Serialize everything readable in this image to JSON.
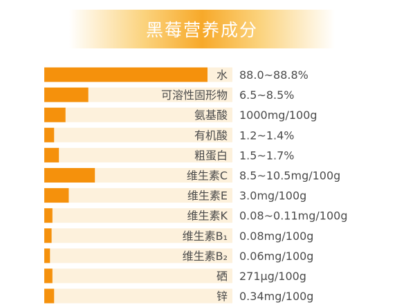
{
  "title": "黑莓营养成分",
  "colors": {
    "bar": "#f5910c",
    "track": "#fdf1dc",
    "banner_center": "#f7a92a",
    "banner_edge": "#fbd37e",
    "text": "#4a4a4a"
  },
  "chart_data": {
    "type": "bar",
    "orientation": "horizontal",
    "title": "黑莓营养成分",
    "categories": [
      "水",
      "可溶性固形物",
      "氨基酸",
      "有机酸",
      "粗蛋白",
      "维生素C",
      "维生素E",
      "维生素K",
      "维生素B₁",
      "维生素B₂",
      "硒",
      "锌"
    ],
    "value_labels": [
      "88.0~88.8%",
      "6.5~8.5%",
      "1000mg/100g",
      "1.2~1.4%",
      "1.5~1.7%",
      "8.5~10.5mg/100g",
      "3.0mg/100g",
      "0.08~0.11mg/100g",
      "0.08mg/100g",
      "0.06mg/100g",
      "271μg/100g",
      "0.34mg/100g"
    ],
    "values": [
      1.0,
      0.27,
      0.13,
      0.06,
      0.09,
      0.31,
      0.15,
      0.05,
      0.045,
      0.035,
      0.05,
      0.06
    ],
    "value_scale": "bar length as fraction of longest bar",
    "grid": false,
    "legend": "none"
  }
}
